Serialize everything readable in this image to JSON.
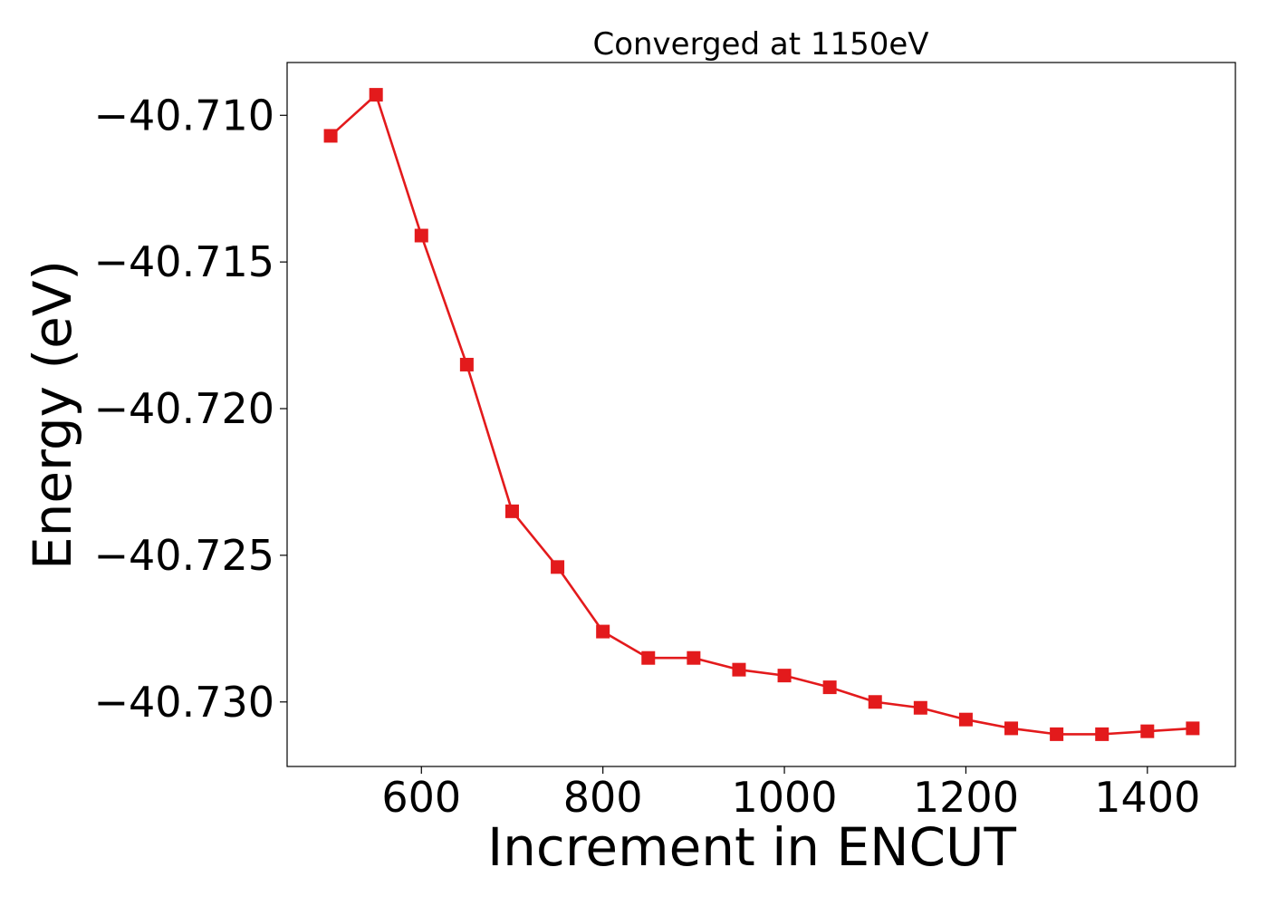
{
  "chart_data": {
    "type": "line",
    "title": "Converged at 1150eV",
    "xlabel": "Increment in ENCUT",
    "ylabel": "Energy (eV)",
    "xlim": [
      452,
      1497
    ],
    "ylim": [
      -40.7322,
      -40.7082
    ],
    "xticks": [
      600,
      800,
      1000,
      1200,
      1400
    ],
    "yticks": [
      -40.71,
      -40.715,
      -40.72,
      -40.725,
      -40.73
    ],
    "xtick_labels": [
      "600",
      "800",
      "1000",
      "1200",
      "1400"
    ],
    "ytick_labels": [
      "−40.710",
      "−40.715",
      "−40.720",
      "−40.725",
      "−40.730"
    ],
    "grid": false,
    "series": [
      {
        "color": "#e31a1c",
        "marker": "square",
        "x": [
          500,
          550,
          600,
          650,
          700,
          750,
          800,
          850,
          900,
          950,
          1000,
          1050,
          1100,
          1150,
          1200,
          1250,
          1300,
          1350,
          1400,
          1450
        ],
        "y": [
          -40.7107,
          -40.7093,
          -40.7141,
          -40.7185,
          -40.7235,
          -40.7254,
          -40.7276,
          -40.7285,
          -40.7285,
          -40.7289,
          -40.7291,
          -40.7295,
          -40.73,
          -40.7302,
          -40.7306,
          -40.7309,
          -40.7311,
          -40.7311,
          -40.731,
          -40.7309
        ]
      }
    ]
  }
}
